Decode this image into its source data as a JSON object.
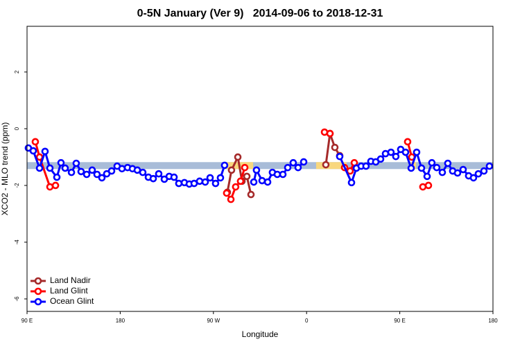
{
  "chart_data": {
    "type": "line",
    "title": "0-5N January (Ver 9)   2014-09-06 to 2018-12-31",
    "x_label": "Longitude",
    "y_label": "XCO2 - MLO trend (ppm)",
    "xlim": [
      90,
      540
    ],
    "ylim": [
      -6.44,
      3.61
    ],
    "xticks": [
      {
        "value": 90,
        "label": "90 E"
      },
      180,
      {
        "value": 270,
        "label": "90 W"
      },
      {
        "value": 360,
        "label": "0"
      },
      {
        "value": 450,
        "label": "90 E"
      },
      {
        "value": 540,
        "label": "180"
      }
    ],
    "yticks": [
      2,
      0,
      -2,
      -4,
      -6
    ],
    "legend": "bottom-left",
    "band": {
      "value": -1.3,
      "color": "#a8bcd8"
    },
    "highlight_color": "#f8d77e",
    "highlight_ranges": [
      [
        279.5,
        308.3
      ],
      [
        369.2,
        398.7
      ],
      [
        459,
        465.7
      ]
    ],
    "series": [
      {
        "name": "Land Nadir",
        "color": "#a52a2a",
        "x": [
          283.5,
          287.5,
          293.6,
          297.6,
          302.3,
          306.3,
          null,
          378.6,
          382.6,
          387.3,
          392.0
        ],
        "values": [
          -2.24,
          -1.46,
          -1.0,
          -1.85,
          -1.68,
          -2.32,
          null,
          -1.27,
          -0.17,
          -0.66,
          -0.95
        ]
      },
      {
        "name": "Land Glint",
        "color": "#ff0000",
        "x": [
          98.0,
          102.1,
          112.1,
          117.5,
          null,
          282.8,
          286.9,
          291.5,
          296.2,
          300.3,
          null,
          377.3,
          382.6,
          null,
          396.7,
          402.0,
          406.1,
          null,
          457.6,
          461.6,
          null,
          472.3,
          477.7
        ],
        "values": [
          -0.46,
          -1.0,
          -2.05,
          -2.0,
          null,
          -2.27,
          -2.49,
          -2.05,
          -1.85,
          -1.37,
          null,
          -0.12,
          -0.17,
          null,
          -1.37,
          -1.49,
          -1.2,
          null,
          -0.46,
          -1.0,
          null,
          -2.05,
          -2.0
        ]
      },
      {
        "name": "Ocean Glint",
        "color": "#0000ff",
        "x": [
          91.3,
          96.0,
          102.1,
          107.4,
          112.1,
          118.8,
          122.8,
          126.8,
          132.9,
          137.5,
          142.2,
          147.6,
          152.9,
          157.6,
          162.3,
          167.0,
          171.7,
          177.0,
          181.7,
          187.1,
          191.8,
          196.5,
          201.8,
          207.2,
          211.9,
          217.2,
          222.6,
          227.3,
          232.0,
          236.6,
          242.0,
          246.7,
          251.4,
          256.7,
          262.1,
          266.8,
          272.1,
          276.8,
          280.8,
          null,
          309.0,
          311.6,
          317.0,
          322.4,
          327.0,
          331.7,
          337.1,
          341.8,
          347.1,
          351.8,
          357.2,
          null,
          392.0,
          403.4,
          408.1,
          412.7,
          417.4,
          422.1,
          426.8,
          431.5,
          436.2,
          441.5,
          446.2,
          450.9,
          455.6,
          461.0,
          466.3,
          471.0,
          476.4,
          481.0,
          485.7,
          491.1,
          496.4,
          501.1,
          505.8,
          511.2,
          516.5,
          521.2,
          525.9,
          531.3,
          536.6
        ],
        "values": [
          -0.68,
          -0.78,
          -1.39,
          -0.8,
          -1.39,
          -1.71,
          -1.2,
          -1.39,
          -1.54,
          -1.22,
          -1.51,
          -1.61,
          -1.46,
          -1.61,
          -1.73,
          -1.59,
          -1.49,
          -1.32,
          -1.41,
          -1.37,
          -1.41,
          -1.46,
          -1.54,
          -1.71,
          -1.76,
          -1.59,
          -1.78,
          -1.68,
          -1.71,
          -1.93,
          -1.9,
          -1.95,
          -1.93,
          -1.85,
          -1.88,
          -1.73,
          -1.93,
          -1.73,
          -1.29,
          null,
          -1.88,
          -1.46,
          -1.83,
          -1.88,
          -1.54,
          -1.61,
          -1.61,
          -1.37,
          -1.2,
          -1.37,
          -1.17,
          null,
          -0.98,
          -1.9,
          -1.39,
          -1.32,
          -1.32,
          -1.15,
          -1.17,
          -1.07,
          -0.88,
          -0.83,
          -0.98,
          -0.73,
          -0.83,
          -1.39,
          -0.83,
          -1.39,
          -1.68,
          -1.2,
          -1.37,
          -1.54,
          -1.22,
          -1.49,
          -1.56,
          -1.44,
          -1.66,
          -1.73,
          -1.59,
          -1.49,
          -1.32
        ]
      }
    ]
  }
}
